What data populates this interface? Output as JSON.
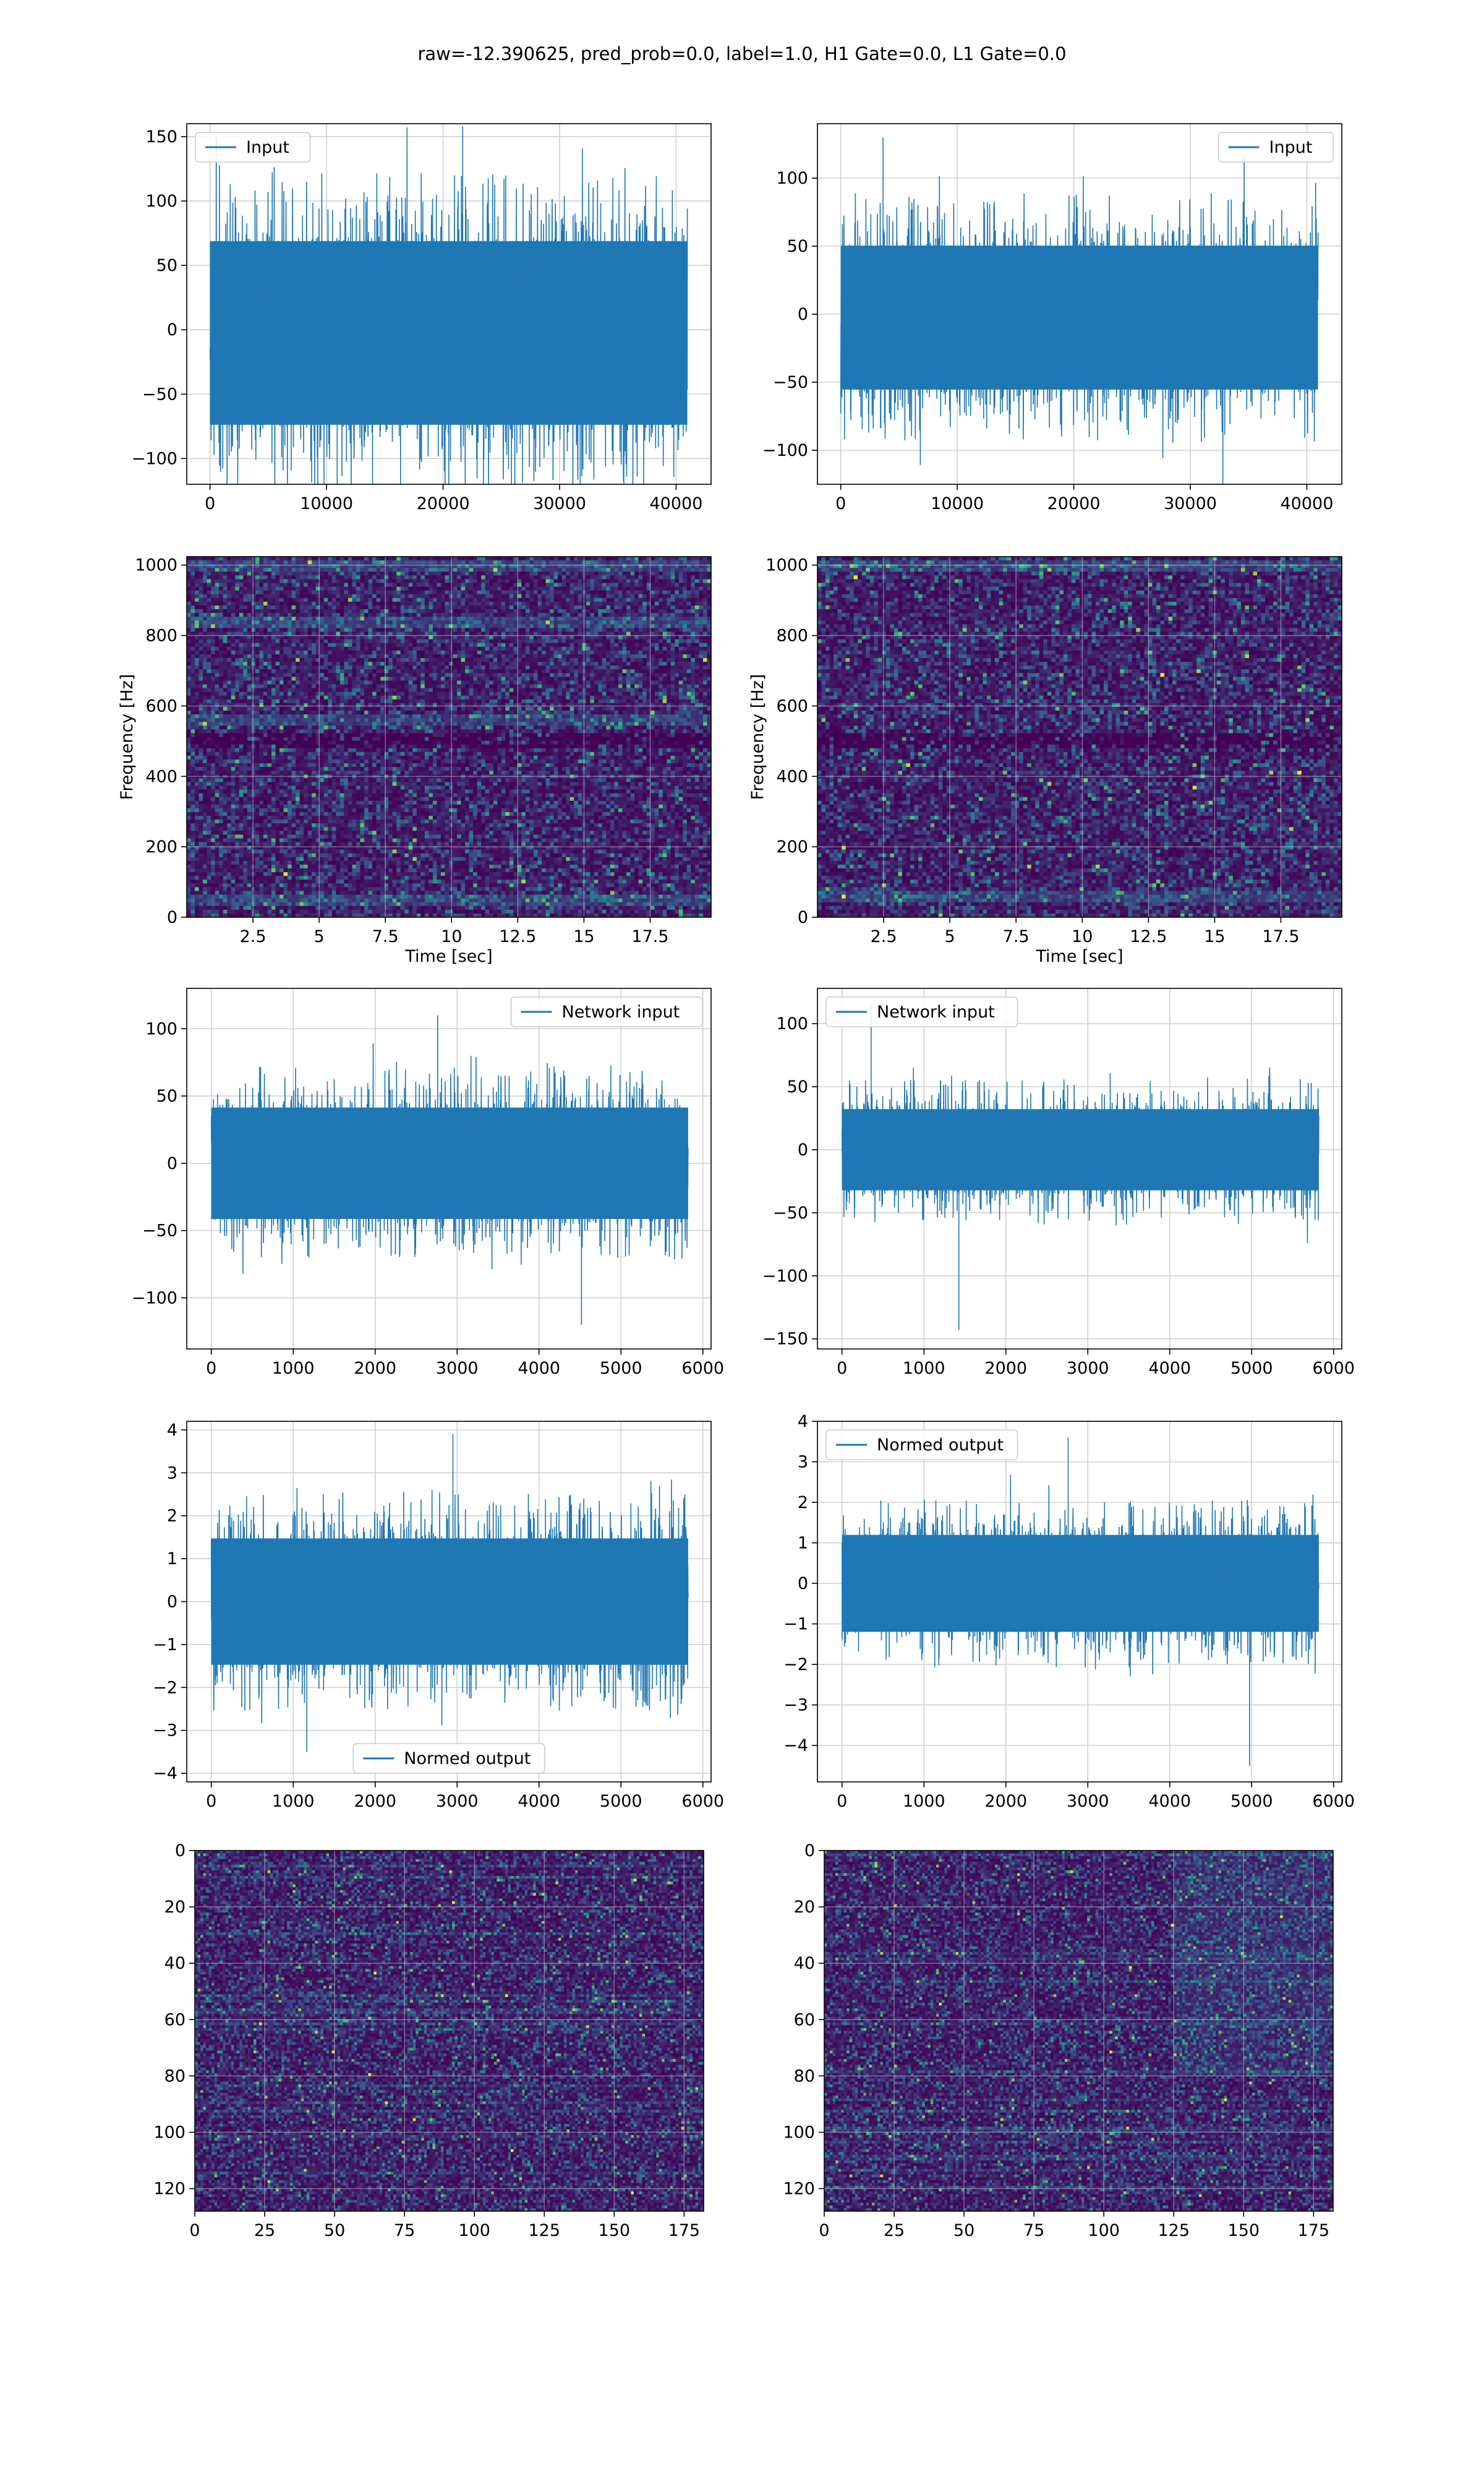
{
  "figure": {
    "suptitle": "raw=-12.390625, pred_prob=0.0, label=1.0, H1 Gate=0.0, L1 Gate=0.0"
  },
  "colors": {
    "line": "#1f77b4",
    "grid": "#d0d0d0",
    "viridis_dark": "#440154",
    "viridis_mid": "#3b528b",
    "viridis_teal": "#21918c",
    "viridis_green": "#5ec962",
    "viridis_yellow": "#fde725"
  },
  "chart_data": [
    {
      "id": "input-h1",
      "type": "line",
      "legend": "Input",
      "legend_loc": "upper left",
      "xlim": [
        -2000,
        43000
      ],
      "ylim": [
        -120,
        160
      ],
      "xticks": [
        0,
        10000,
        20000,
        30000,
        40000
      ],
      "yticks": [
        -100,
        -50,
        0,
        50,
        100,
        150
      ],
      "x_range": [
        0,
        40960
      ],
      "envelope": [
        -80,
        75
      ],
      "extreme": [
        -125,
        158
      ]
    },
    {
      "id": "input-l1",
      "type": "line",
      "legend": "Input",
      "legend_loc": "upper right",
      "xlim": [
        -2000,
        43000
      ],
      "ylim": [
        -125,
        140
      ],
      "xticks": [
        0,
        10000,
        20000,
        30000,
        40000
      ],
      "yticks": [
        -100,
        -50,
        0,
        50,
        100
      ],
      "x_range": [
        0,
        40960
      ],
      "envelope": [
        -60,
        55
      ],
      "extreme": [
        -125,
        130
      ]
    },
    {
      "id": "spectrogram-h1",
      "type": "heatmap",
      "xlabel": "Time [sec]",
      "ylabel": "Frequency [Hz]",
      "xlim": [
        0,
        19.8
      ],
      "ylim": [
        0,
        1024
      ],
      "xticks": [
        2.5,
        5.0,
        7.5,
        10.0,
        12.5,
        15.0,
        17.5
      ],
      "yticks": [
        0,
        200,
        400,
        600,
        800,
        1000
      ],
      "bright_bands_hz": [
        45,
        560,
        840,
        1000
      ],
      "dark_bands_hz": [
        500
      ]
    },
    {
      "id": "spectrogram-l1",
      "type": "heatmap",
      "xlabel": "Time [sec]",
      "ylabel": "Frequency [Hz]",
      "xlim": [
        0,
        19.8
      ],
      "ylim": [
        0,
        1024
      ],
      "xticks": [
        2.5,
        5.0,
        7.5,
        10.0,
        12.5,
        15.0,
        17.5
      ],
      "yticks": [
        0,
        200,
        400,
        600,
        800,
        1000
      ],
      "bright_bands_hz": [
        60,
        1000
      ],
      "dark_bands_hz": [
        500
      ]
    },
    {
      "id": "network-input-h1",
      "type": "line",
      "legend": "Network input",
      "legend_loc": "upper right",
      "xlim": [
        -300,
        6100
      ],
      "ylim": [
        -138,
        130
      ],
      "xticks": [
        0,
        1000,
        2000,
        3000,
        4000,
        5000,
        6000
      ],
      "yticks": [
        -100,
        -50,
        0,
        50,
        100
      ],
      "x_range": [
        0,
        5820
      ],
      "envelope": [
        -45,
        45
      ],
      "extreme": [
        -120,
        110
      ]
    },
    {
      "id": "network-input-l1",
      "type": "line",
      "legend": "Network input",
      "legend_loc": "upper left",
      "xlim": [
        -300,
        6100
      ],
      "ylim": [
        -158,
        128
      ],
      "xticks": [
        0,
        1000,
        2000,
        3000,
        4000,
        5000,
        6000
      ],
      "yticks": [
        -150,
        -100,
        -50,
        0,
        50,
        100
      ],
      "x_range": [
        0,
        5820
      ],
      "envelope": [
        -35,
        35
      ],
      "extreme": [
        -143,
        115
      ]
    },
    {
      "id": "normed-output-h1",
      "type": "line",
      "legend": "Normed output",
      "legend_loc": "lower center",
      "xlim": [
        -300,
        6100
      ],
      "ylim": [
        -4.2,
        4.2
      ],
      "xticks": [
        0,
        1000,
        2000,
        3000,
        4000,
        5000,
        6000
      ],
      "yticks": [
        -4,
        -3,
        -2,
        -1,
        0,
        1,
        2,
        3,
        4
      ],
      "x_range": [
        0,
        5820
      ],
      "envelope": [
        -1.6,
        1.6
      ],
      "extreme": [
        -3.5,
        3.9
      ]
    },
    {
      "id": "normed-output-l1",
      "type": "line",
      "legend": "Normed output",
      "legend_loc": "upper left",
      "xlim": [
        -300,
        6100
      ],
      "ylim": [
        -4.9,
        4.0
      ],
      "xticks": [
        0,
        1000,
        2000,
        3000,
        4000,
        5000,
        6000
      ],
      "yticks": [
        -4,
        -3,
        -2,
        -1,
        0,
        1,
        2,
        3,
        4
      ],
      "x_range": [
        0,
        5820
      ],
      "envelope": [
        -1.3,
        1.3
      ],
      "extreme": [
        -4.5,
        3.6
      ]
    },
    {
      "id": "matrix-h1",
      "type": "heatmap",
      "xlim": [
        0,
        182
      ],
      "ylim": [
        128,
        0
      ],
      "xticks": [
        0,
        25,
        50,
        75,
        100,
        125,
        150,
        175
      ],
      "yticks": [
        0,
        20,
        40,
        60,
        80,
        100,
        120
      ]
    },
    {
      "id": "matrix-l1",
      "type": "heatmap",
      "xlim": [
        0,
        182
      ],
      "ylim": [
        128,
        0
      ],
      "xticks": [
        0,
        25,
        50,
        75,
        100,
        125,
        150,
        175
      ],
      "yticks": [
        0,
        20,
        40,
        60,
        80,
        100,
        120
      ],
      "bright_region_x": [
        125,
        182
      ]
    }
  ]
}
